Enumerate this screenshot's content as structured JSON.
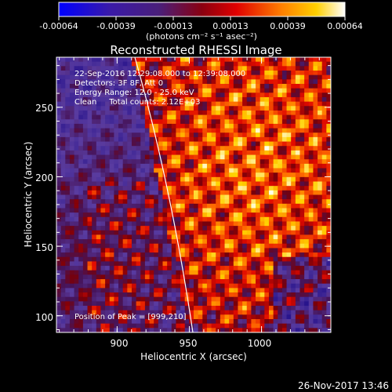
{
  "colorbar": {
    "ticks": [
      "-0.00064",
      "-0.00039",
      "-0.00013",
      "0.00013",
      "0.00039",
      "0.00064"
    ],
    "unit_label": "(photons cm⁻² s⁻¹ asec⁻²)",
    "range": [
      -0.00064,
      0.00064
    ]
  },
  "info": {
    "time": "22-Sep-2016 12:29:08.000 to 12:39:08.000",
    "detectors": "Detectors: 3F 8F, Att 0",
    "energy": "Energy Range: 12.0 - 25.0 keV",
    "clean": "Clean     Total counts: 2.12E+03",
    "peak": "Position of Peak = [999,210]"
  },
  "footer": {
    "timestamp": "26-Nov-2017 13:46"
  },
  "colors": {
    "background": "#000000",
    "limb": "#ffffff"
  },
  "chart_data": {
    "type": "heatmap",
    "title": "Reconstructed RHESSI Image",
    "xlabel": "Heliocentric X (arcsec)",
    "ylabel": "Heliocentric Y (arcsec)",
    "xlim": [
      858,
      1048
    ],
    "ylim": [
      88,
      286
    ],
    "xticks": [
      900,
      950,
      1000
    ],
    "xtick_labels": [
      "900",
      "950",
      "1000"
    ],
    "yticks": [
      100,
      150,
      200,
      250
    ],
    "ytick_labels": [
      "100",
      "150",
      "200",
      "250"
    ],
    "peak": [
      999,
      210
    ],
    "grid": false,
    "colormap": "rainbow"
  }
}
